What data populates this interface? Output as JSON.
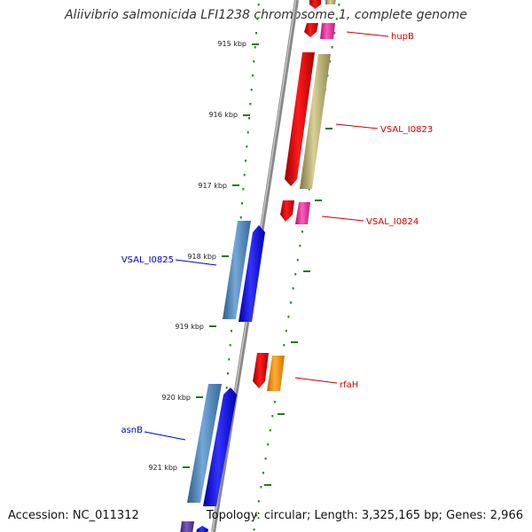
{
  "title": "Aliivibrio salmonicida LFI1238 chromosome 1, complete genome",
  "footer": {
    "accession": "Accession: NC_011312",
    "summary": "Topology: circular; Length: 3,325,165 bp; Genes: 2,966"
  },
  "colors": {
    "backbone": "#8a8a8a",
    "tick": "#1f7a1f",
    "red_gene": "#ee0000",
    "khaki_gene": "#c9c07f",
    "pink_gene": "#ff33aa",
    "orange_gene": "#ff9900",
    "steel_gene": "#4a86c0",
    "blue_gene": "#0000ff",
    "purple_gene": "#553399",
    "red_label": "#cc0000",
    "blue_label": "#0000cc"
  },
  "ticks": [
    "915 kbp",
    "916 kbp",
    "917 kbp",
    "918 kbp",
    "919 kbp",
    "920 kbp",
    "921 kbp"
  ],
  "gene_labels": [
    "hupB",
    "VSAL_I0823",
    "VSAL_I0824",
    "VSAL_I0825",
    "rfaH",
    "asnB"
  ]
}
